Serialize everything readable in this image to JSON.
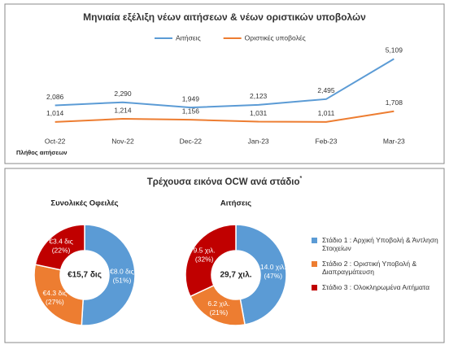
{
  "chart_data": [
    {
      "type": "line",
      "title": "Μηνιαία εξέλιξη νέων αιτήσεων & νέων οριστικών υποβολών",
      "categories": [
        "Oct-22",
        "Nov-22",
        "Dec-22",
        "Jan-23",
        "Feb-23",
        "Mar-23"
      ],
      "series": [
        {
          "name": "Αιτήσεις",
          "color": "#5b9bd5",
          "values": [
            2086,
            2290,
            1949,
            2123,
            2495,
            5109
          ],
          "value_labels": [
            "2,086",
            "2,290",
            "1,949",
            "2,123",
            "2,495",
            "5,109"
          ]
        },
        {
          "name": "Οριστικές υποβολές",
          "color": "#ed7d31",
          "values": [
            1014,
            1214,
            1156,
            1031,
            1011,
            1708
          ],
          "value_labels": [
            "1,014",
            "1,214",
            "1,156",
            "1,031",
            "1,011",
            "1,708"
          ]
        }
      ],
      "ylim": [
        0,
        5500
      ],
      "legend": "top",
      "footnote": "Πλήθος αιτήσεων"
    },
    {
      "type": "donut",
      "title": "Συνολικές Οφειλές",
      "center_label": "€15,7 δις",
      "categories": [
        "Στάδιο 1 : Αρχική Υποβολή & Άντληση Στοιχείων",
        "Στάδιο 2 : Οριστική Υποβολή & Διαπραγμάτευση",
        "Στάδιο 3 : Ολοκληρωμένα Αιτήματα"
      ],
      "colors": [
        "#5b9bd5",
        "#ed7d31",
        "#c00000"
      ],
      "values": [
        8.0,
        4.3,
        3.4
      ],
      "value_labels": [
        "€8.0 δις",
        "€4.3 δις",
        "€3.4 δις"
      ],
      "percents": [
        51,
        27,
        22
      ],
      "percent_labels": [
        "(51%)",
        "(27%)",
        "(22%)"
      ],
      "legend": "right"
    },
    {
      "type": "donut",
      "title": "Αιτήσεις",
      "center_label": "29,7 χιλ.",
      "colors": [
        "#5b9bd5",
        "#ed7d31",
        "#c00000"
      ],
      "values": [
        14.0,
        6.2,
        9.5
      ],
      "value_labels": [
        "14.0 χιλ.",
        "6.2 χιλ.",
        "9.5 χιλ."
      ],
      "percents": [
        47,
        21,
        32
      ],
      "percent_labels": [
        "(47%)",
        "(21%)",
        "(32%)"
      ]
    }
  ],
  "section": {
    "title": "Τρέχουσα εικόνα OCW ανά στάδιο",
    "marker": "*"
  }
}
